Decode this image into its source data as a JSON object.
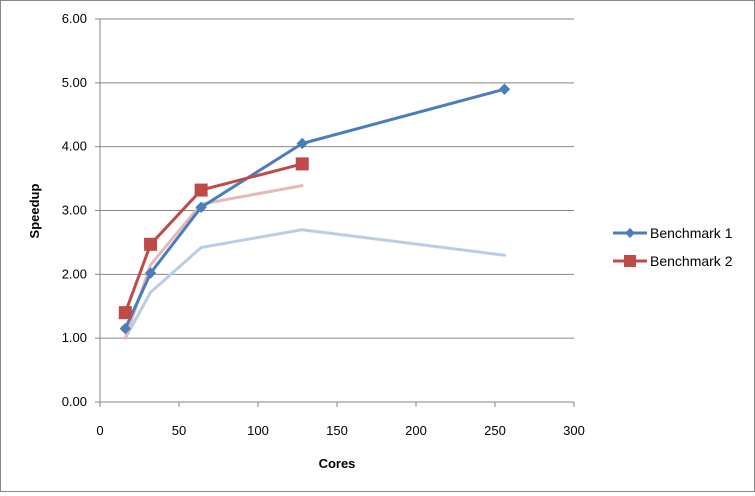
{
  "chart_data": {
    "type": "line",
    "title": "",
    "xlabel": "Cores",
    "ylabel": "Speedup",
    "xlim": [
      0,
      300
    ],
    "ylim": [
      0,
      6
    ],
    "x_ticks": [
      0,
      50,
      100,
      150,
      200,
      250,
      300
    ],
    "x_tick_labels": [
      "0",
      "50",
      "100",
      "150",
      "200",
      "250",
      "300"
    ],
    "y_ticks": [
      0,
      1,
      2,
      3,
      4,
      5,
      6
    ],
    "y_tick_labels": [
      "0.00",
      "1.00",
      "2.00",
      "3.00",
      "4.00",
      "5.00",
      "6.00"
    ],
    "grid": "horizontal",
    "legend_position": "right",
    "series": [
      {
        "name": "Benchmark 1",
        "color": "#4A7EBB",
        "marker": "diamond",
        "points": [
          [
            16,
            1.15
          ],
          [
            32,
            2.02
          ],
          [
            64,
            3.05
          ],
          [
            128,
            4.05
          ],
          [
            256,
            4.9
          ]
        ]
      },
      {
        "name": "Benchmark 2",
        "color": "#BE4B48",
        "marker": "square",
        "points": [
          [
            16,
            1.4
          ],
          [
            32,
            2.47
          ],
          [
            64,
            3.32
          ],
          [
            128,
            3.73
          ]
        ]
      },
      {
        "color": "#B9CDE5",
        "marker": "none",
        "points": [
          [
            16,
            1.0
          ],
          [
            32,
            1.72
          ],
          [
            64,
            2.42
          ],
          [
            128,
            2.7
          ],
          [
            256,
            2.3
          ]
        ]
      },
      {
        "color": "#E6B9B8",
        "marker": "none",
        "points": [
          [
            16,
            1.0
          ],
          [
            32,
            2.15
          ],
          [
            64,
            3.1
          ],
          [
            128,
            3.39
          ]
        ]
      }
    ]
  }
}
